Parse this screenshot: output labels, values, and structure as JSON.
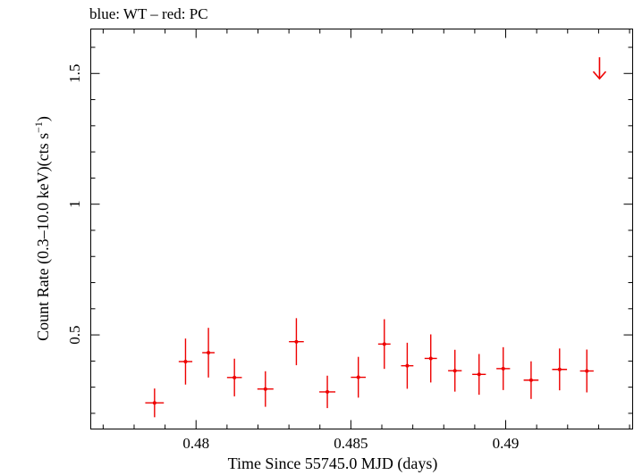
{
  "chart_data": {
    "type": "scatter",
    "title": "blue: WT – red: PC",
    "xlabel": "Time Since 55745.0 MJD (days)",
    "ylabel_main": "Count Rate (0.3–10.0 keV)(cts s",
    "ylabel_sup": "−1",
    "ylabel_close": ")",
    "xlim": [
      0.4766,
      0.4941
    ],
    "ylim": [
      0.14,
      1.67
    ],
    "x_ticks": [
      0.48,
      0.485,
      0.49
    ],
    "x_tick_labels": [
      "0.48",
      "0.485",
      "0.49"
    ],
    "y_ticks": [
      0.5,
      1.0,
      1.5
    ],
    "y_tick_labels": [
      "0.5",
      "1",
      "1.5"
    ],
    "series": [
      {
        "color": "#ee0000",
        "points": [
          {
            "x": 0.47866,
            "xerr": 0.0003,
            "y": 0.24,
            "yerr": 0.055
          },
          {
            "x": 0.47966,
            "xerr": 0.00022,
            "y": 0.398,
            "yerr": 0.088
          },
          {
            "x": 0.4804,
            "xerr": 0.0002,
            "y": 0.432,
            "yerr": 0.095
          },
          {
            "x": 0.48124,
            "xerr": 0.00024,
            "y": 0.337,
            "yerr": 0.072
          },
          {
            "x": 0.48224,
            "xerr": 0.00026,
            "y": 0.293,
            "yerr": 0.068
          },
          {
            "x": 0.48324,
            "xerr": 0.00024,
            "y": 0.474,
            "yerr": 0.09
          },
          {
            "x": 0.48424,
            "xerr": 0.00026,
            "y": 0.282,
            "yerr": 0.062
          },
          {
            "x": 0.48524,
            "xerr": 0.00024,
            "y": 0.338,
            "yerr": 0.078
          },
          {
            "x": 0.48608,
            "xerr": 0.0002,
            "y": 0.465,
            "yerr": 0.095
          },
          {
            "x": 0.48682,
            "xerr": 0.0002,
            "y": 0.382,
            "yerr": 0.088
          },
          {
            "x": 0.48758,
            "xerr": 0.0002,
            "y": 0.41,
            "yerr": 0.092
          },
          {
            "x": 0.48836,
            "xerr": 0.00022,
            "y": 0.363,
            "yerr": 0.08
          },
          {
            "x": 0.48914,
            "xerr": 0.00022,
            "y": 0.349,
            "yerr": 0.078
          },
          {
            "x": 0.48992,
            "xerr": 0.00022,
            "y": 0.371,
            "yerr": 0.082
          },
          {
            "x": 0.49082,
            "xerr": 0.00024,
            "y": 0.327,
            "yerr": 0.072
          },
          {
            "x": 0.49174,
            "xerr": 0.00024,
            "y": 0.368,
            "yerr": 0.08
          },
          {
            "x": 0.49262,
            "xerr": 0.00022,
            "y": 0.362,
            "yerr": 0.082
          }
        ],
        "upper_limits": [
          {
            "x": 0.49303,
            "y": 1.48
          }
        ]
      }
    ]
  }
}
